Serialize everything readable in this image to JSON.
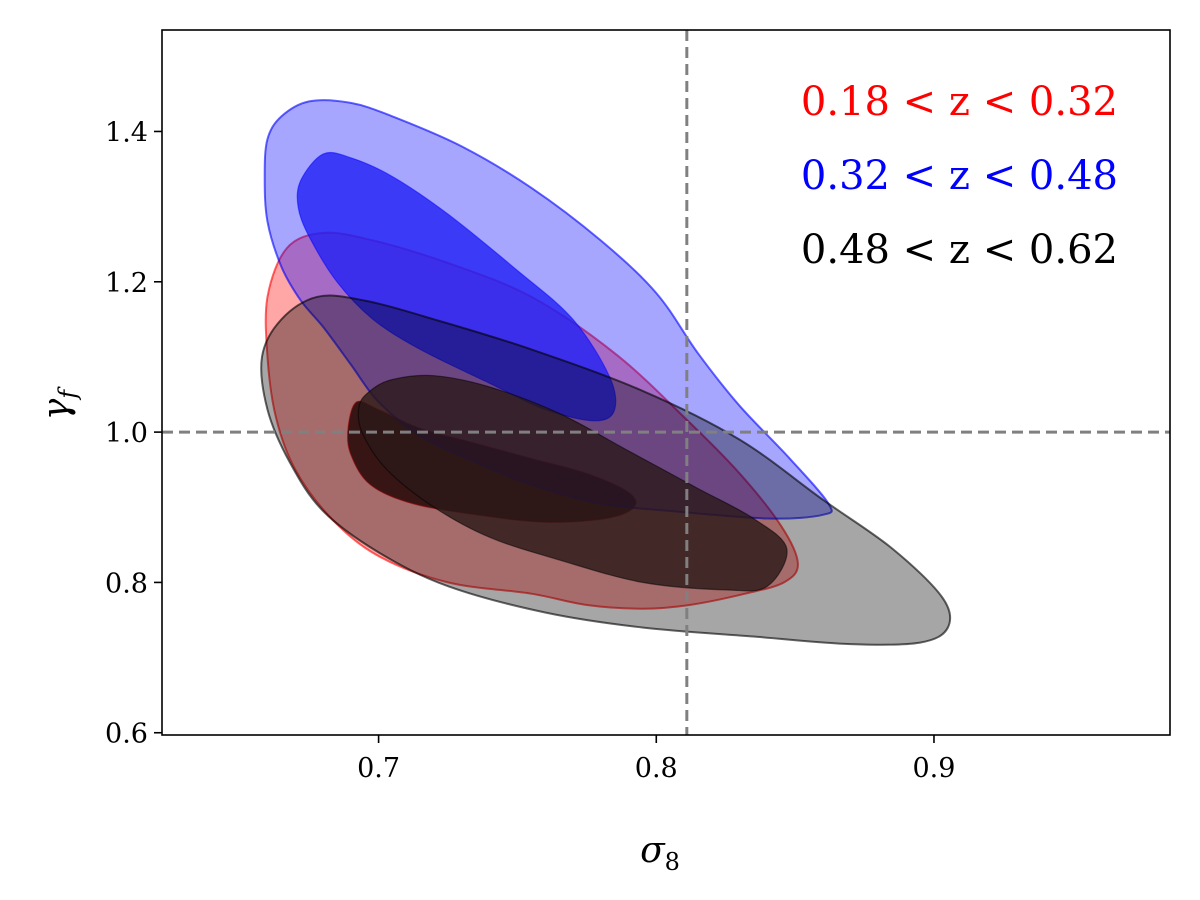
{
  "chart_data": {
    "type": "contour",
    "xlabel": "σ",
    "xlabel_sub": "8",
    "ylabel": "γ",
    "ylabel_sub": "f",
    "xlim": [
      0.622,
      0.985
    ],
    "ylim": [
      0.597,
      1.535
    ],
    "xticks": [
      0.7,
      0.8,
      0.9
    ],
    "xtick_labels": [
      "0.7",
      "0.8",
      "0.9"
    ],
    "yticks": [
      0.6,
      0.8,
      1.0,
      1.2,
      1.4
    ],
    "ytick_labels": [
      "0.6",
      "0.8",
      "1.0",
      "1.2",
      "1.4"
    ],
    "reference_lines": {
      "x": 0.811,
      "y": 1.0,
      "color": "#808080",
      "style": "dashed"
    },
    "legend_position": "top-right",
    "series": [
      {
        "name": "0.18 < z < 0.32",
        "color": "#ff0000",
        "inner_fill": "#2a0000",
        "outer_contour": [
          [
            0.667,
            1.245
          ],
          [
            0.68,
            1.265
          ],
          [
            0.698,
            1.255
          ],
          [
            0.725,
            1.225
          ],
          [
            0.755,
            1.18
          ],
          [
            0.785,
            1.105
          ],
          [
            0.81,
            1.02
          ],
          [
            0.83,
            0.945
          ],
          [
            0.845,
            0.875
          ],
          [
            0.851,
            0.825
          ],
          [
            0.846,
            0.8
          ],
          [
            0.832,
            0.785
          ],
          [
            0.812,
            0.77
          ],
          [
            0.795,
            0.765
          ],
          [
            0.775,
            0.77
          ],
          [
            0.755,
            0.785
          ],
          [
            0.725,
            0.8
          ],
          [
            0.7,
            0.835
          ],
          [
            0.683,
            0.885
          ],
          [
            0.67,
            0.95
          ],
          [
            0.663,
            1.02
          ],
          [
            0.66,
            1.1
          ],
          [
            0.66,
            1.18
          ]
        ],
        "inner_contour": [
          [
            0.692,
            1.04
          ],
          [
            0.7,
            1.03
          ],
          [
            0.715,
            1.005
          ],
          [
            0.735,
            0.985
          ],
          [
            0.755,
            0.965
          ],
          [
            0.775,
            0.945
          ],
          [
            0.79,
            0.92
          ],
          [
            0.792,
            0.9
          ],
          [
            0.782,
            0.885
          ],
          [
            0.76,
            0.88
          ],
          [
            0.735,
            0.89
          ],
          [
            0.712,
            0.905
          ],
          [
            0.697,
            0.93
          ],
          [
            0.69,
            0.97
          ],
          [
            0.689,
            1.005
          ]
        ]
      },
      {
        "name": "0.32 < z < 0.48",
        "color": "#0000ff",
        "inner_fill": "#2020f5",
        "outer_contour": [
          [
            0.665,
            1.42
          ],
          [
            0.675,
            1.44
          ],
          [
            0.69,
            1.438
          ],
          [
            0.705,
            1.42
          ],
          [
            0.73,
            1.38
          ],
          [
            0.755,
            1.325
          ],
          [
            0.78,
            1.255
          ],
          [
            0.8,
            1.185
          ],
          [
            0.815,
            1.105
          ],
          [
            0.83,
            1.035
          ],
          [
            0.848,
            0.965
          ],
          [
            0.862,
            0.905
          ],
          [
            0.86,
            0.89
          ],
          [
            0.84,
            0.885
          ],
          [
            0.805,
            0.895
          ],
          [
            0.78,
            0.905
          ],
          [
            0.755,
            0.93
          ],
          [
            0.735,
            0.96
          ],
          [
            0.715,
            0.995
          ],
          [
            0.7,
            1.04
          ],
          [
            0.69,
            1.09
          ],
          [
            0.68,
            1.14
          ],
          [
            0.672,
            1.175
          ],
          [
            0.665,
            1.22
          ],
          [
            0.66,
            1.28
          ],
          [
            0.659,
            1.34
          ],
          [
            0.66,
            1.39
          ]
        ],
        "inner_contour": [
          [
            0.672,
            1.335
          ],
          [
            0.68,
            1.37
          ],
          [
            0.69,
            1.365
          ],
          [
            0.705,
            1.34
          ],
          [
            0.725,
            1.29
          ],
          [
            0.75,
            1.215
          ],
          [
            0.77,
            1.15
          ],
          [
            0.783,
            1.075
          ],
          [
            0.785,
            1.03
          ],
          [
            0.778,
            1.015
          ],
          [
            0.76,
            1.03
          ],
          [
            0.74,
            1.065
          ],
          [
            0.715,
            1.11
          ],
          [
            0.698,
            1.15
          ],
          [
            0.685,
            1.2
          ],
          [
            0.675,
            1.26
          ],
          [
            0.671,
            1.3
          ]
        ]
      },
      {
        "name": "0.48 < z < 0.62",
        "color": "#000000",
        "inner_fill": "#2a1818",
        "outer_contour": [
          [
            0.665,
            1.15
          ],
          [
            0.678,
            1.18
          ],
          [
            0.695,
            1.175
          ],
          [
            0.72,
            1.15
          ],
          [
            0.755,
            1.11
          ],
          [
            0.795,
            1.055
          ],
          [
            0.83,
            0.99
          ],
          [
            0.86,
            0.91
          ],
          [
            0.885,
            0.845
          ],
          [
            0.903,
            0.78
          ],
          [
            0.905,
            0.74
          ],
          [
            0.895,
            0.72
          ],
          [
            0.87,
            0.718
          ],
          [
            0.835,
            0.728
          ],
          [
            0.795,
            0.74
          ],
          [
            0.76,
            0.76
          ],
          [
            0.725,
            0.795
          ],
          [
            0.7,
            0.84
          ],
          [
            0.68,
            0.895
          ],
          [
            0.668,
            0.96
          ],
          [
            0.66,
            1.03
          ],
          [
            0.658,
            1.1
          ]
        ],
        "inner_contour": [
          [
            0.697,
            1.055
          ],
          [
            0.705,
            1.07
          ],
          [
            0.72,
            1.075
          ],
          [
            0.74,
            1.06
          ],
          [
            0.765,
            1.025
          ],
          [
            0.79,
            0.975
          ],
          [
            0.815,
            0.925
          ],
          [
            0.835,
            0.885
          ],
          [
            0.847,
            0.845
          ],
          [
            0.84,
            0.795
          ],
          [
            0.825,
            0.79
          ],
          [
            0.795,
            0.8
          ],
          [
            0.765,
            0.83
          ],
          [
            0.74,
            0.86
          ],
          [
            0.72,
            0.9
          ],
          [
            0.703,
            0.95
          ],
          [
            0.694,
            1.0
          ],
          [
            0.693,
            1.035
          ]
        ]
      }
    ]
  }
}
